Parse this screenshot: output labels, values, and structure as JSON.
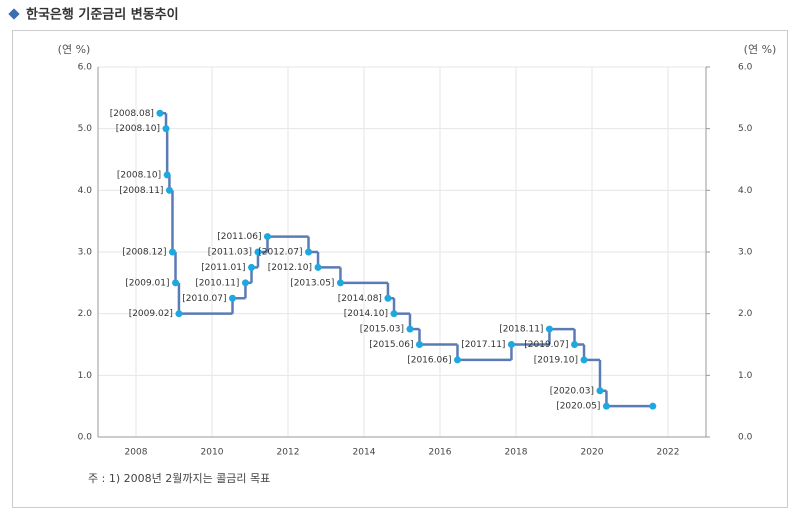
{
  "chart_data": {
    "type": "step",
    "title": "한국은행 기준금리 변동추이",
    "y_label": "(연 %)",
    "y2_label": "(연 %)",
    "note": "주 : 1) 2008년 2월까지는 콜금리 목표",
    "x": [
      2008.63,
      2008.79,
      2008.82,
      2008.88,
      2008.96,
      2009.04,
      2009.13,
      2010.54,
      2010.88,
      2011.04,
      2011.21,
      2011.46,
      2012.54,
      2012.79,
      2013.38,
      2014.63,
      2014.79,
      2015.21,
      2015.46,
      2016.46,
      2017.88,
      2018.88,
      2019.54,
      2019.79,
      2020.21,
      2020.38,
      2021.6
    ],
    "values": [
      5.25,
      5.0,
      4.25,
      4.0,
      3.0,
      2.5,
      2.0,
      2.25,
      2.5,
      2.75,
      3.0,
      3.25,
      3.0,
      2.75,
      2.5,
      2.25,
      2.0,
      1.75,
      1.5,
      1.25,
      1.5,
      1.75,
      1.5,
      1.25,
      0.75,
      0.5,
      0.5
    ],
    "point_labels": [
      "[2008.08]",
      "[2008.10]",
      "[2008.10]",
      "[2008.11]",
      "[2008.12]",
      "[2009.01]",
      "[2009.02]",
      "[2010.07]",
      "[2010.11]",
      "[2011.01]",
      "[2011.03]",
      "[2011.06]",
      "[2012.07]",
      "[2012.10]",
      "[2013.05]",
      "[2014.08]",
      "[2014.10]",
      "[2015.03]",
      "[2015.06]",
      "[2016.06]",
      "[2017.11]",
      "[2018.11]",
      "[2019.07]",
      "[2019.10]",
      "[2020.03]",
      "[2020.05]",
      null
    ],
    "color": "#5b7bb5",
    "marker_color": "#1ea8e0",
    "xlim": [
      2007,
      2023
    ],
    "xticks": [
      2008,
      2010,
      2012,
      2014,
      2016,
      2018,
      2020,
      2022
    ],
    "ylim": [
      0,
      6
    ],
    "yticks": [
      {
        "value": 0,
        "label": "0.0"
      },
      {
        "value": 1,
        "label": "1.0"
      },
      {
        "value": 2,
        "label": "2.0"
      },
      {
        "value": 3,
        "label": "3.0"
      },
      {
        "value": 4,
        "label": "4.0"
      },
      {
        "value": 5,
        "label": "5.0"
      },
      {
        "value": 6,
        "label": "6.0"
      }
    ],
    "y2lim": [
      0,
      6
    ],
    "y2ticks": [
      {
        "value": 0,
        "label": "0.0"
      },
      {
        "value": 1,
        "label": "1.0"
      },
      {
        "value": 2,
        "label": "2.0"
      },
      {
        "value": 3,
        "label": "3.0"
      },
      {
        "value": 4,
        "label": "4.0"
      },
      {
        "value": 5,
        "label": "5.0"
      },
      {
        "value": 6,
        "label": "6.0"
      }
    ],
    "grid": true
  }
}
